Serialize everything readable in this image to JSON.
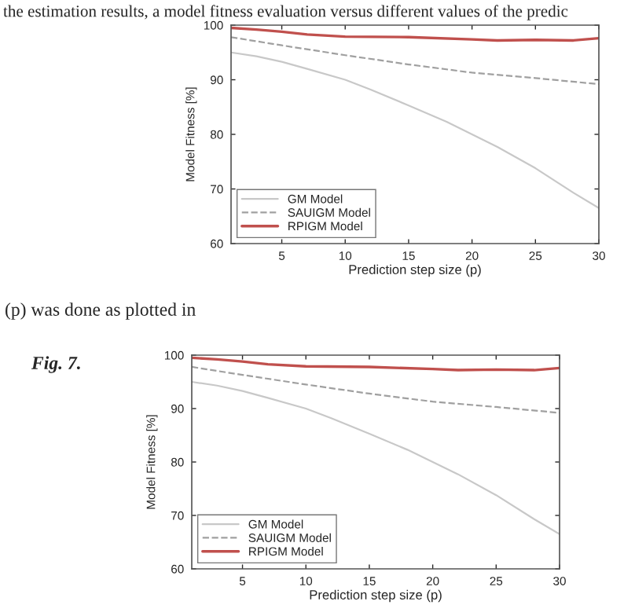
{
  "chart_data": [
    {
      "type": "line",
      "xlabel": "Prediction step size (p)",
      "ylabel": "Model Fitness [%]",
      "xlim": [
        1,
        30
      ],
      "xticks": [
        5,
        10,
        15,
        20,
        25,
        30
      ],
      "ylim": [
        60,
        100
      ],
      "yticks": [
        60,
        70,
        80,
        90,
        100
      ],
      "legend": "bottom left",
      "grid": false,
      "annotations": [
        "the estimation results, a model fitness evaluation versus different values of the predic",
        "(p) was done as plotted in",
        "Fig. 7."
      ],
      "series": [
        {
          "name": "GM Model",
          "color": "#c8c8c8",
          "line_style": "solid",
          "x": [
            1,
            3,
            5,
            7,
            10,
            12,
            15,
            18,
            20,
            22,
            25,
            28,
            30
          ],
          "values": [
            95,
            94.3,
            93.3,
            92,
            90,
            88.2,
            85.3,
            82.3,
            80,
            77.7,
            73.8,
            69.3,
            66.5
          ]
        },
        {
          "name": "SAUIGM Model",
          "color": "#a0a0a0",
          "line_style": "dashed",
          "x": [
            1,
            5,
            10,
            15,
            20,
            25,
            30
          ],
          "values": [
            97.8,
            96.3,
            94.5,
            92.8,
            91.3,
            90.3,
            89.2
          ]
        },
        {
          "name": "RPIGM Model",
          "color": "#c0504d",
          "line_style": "solid",
          "x": [
            1,
            3,
            5,
            7,
            10,
            15,
            20,
            22,
            25,
            28,
            30
          ],
          "values": [
            99.5,
            99.2,
            98.8,
            98.3,
            97.9,
            97.8,
            97.4,
            97.2,
            97.3,
            97.2,
            97.6
          ]
        }
      ]
    },
    {
      "type": "line",
      "xlabel": "Prediction step size (p)",
      "ylabel": "Model Fitness [%]",
      "xlim": [
        1,
        30
      ],
      "xticks": [
        5,
        10,
        15,
        20,
        25,
        30
      ],
      "ylim": [
        60,
        100
      ],
      "yticks": [
        60,
        70,
        80,
        90,
        100
      ],
      "legend": "bottom left",
      "grid": false,
      "series": [
        {
          "name": "GM Model",
          "color": "#c8c8c8",
          "line_style": "solid",
          "x": [
            1,
            3,
            5,
            7,
            10,
            12,
            15,
            18,
            20,
            22,
            25,
            28,
            30
          ],
          "values": [
            95,
            94.3,
            93.3,
            92,
            90,
            88.2,
            85.3,
            82.3,
            80,
            77.7,
            73.8,
            69.3,
            66.5
          ]
        },
        {
          "name": "SAUIGM Model",
          "color": "#a0a0a0",
          "line_style": "dashed",
          "x": [
            1,
            5,
            10,
            15,
            20,
            25,
            30
          ],
          "values": [
            97.8,
            96.3,
            94.5,
            92.8,
            91.3,
            90.3,
            89.2
          ]
        },
        {
          "name": "RPIGM Model",
          "color": "#c0504d",
          "line_style": "solid",
          "x": [
            1,
            3,
            5,
            7,
            10,
            15,
            20,
            22,
            25,
            28,
            30
          ],
          "values": [
            99.5,
            99.2,
            98.8,
            98.3,
            97.9,
            97.8,
            97.4,
            97.2,
            97.3,
            97.2,
            97.6
          ]
        }
      ]
    }
  ]
}
